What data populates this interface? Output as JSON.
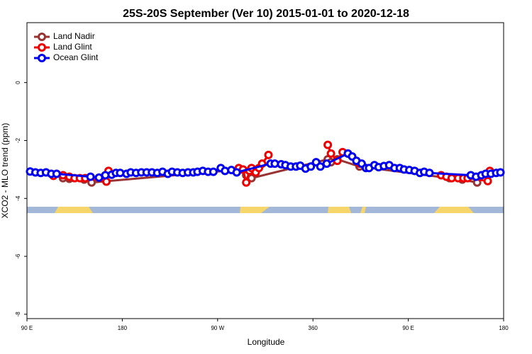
{
  "chart_data": {
    "type": "line",
    "title": "25S-20S September (Ver 10)   2015-01-01 to 2020-12-18",
    "xlabel": "Longitude",
    "ylabel": "XCO2 - MLO trend (ppm)",
    "xlim": [
      90,
      540
    ],
    "ylim": [
      -8.15,
      2.07
    ],
    "xticks": [
      {
        "value": 90,
        "label": "90 E"
      },
      180,
      {
        "value": 270,
        "label": "90 W"
      },
      360,
      {
        "value": 450,
        "label": "90 E"
      },
      {
        "value": 540,
        "label": "180"
      }
    ],
    "yticks": [
      -8,
      -6,
      -4,
      -2,
      0
    ],
    "legend": "top-left",
    "series": [
      {
        "name": "Land Nadir",
        "color": "#993333",
        "x": [
          124,
          130,
          144,
          151,
          292,
          297,
          302,
          374,
          377,
          383,
          404,
          489,
          501,
          515
        ],
        "values": [
          -3.3,
          -3.32,
          -3.35,
          -3.45,
          -3.0,
          -3.2,
          -3.3,
          -2.65,
          -2.75,
          -2.65,
          -2.9,
          -3.3,
          -3.35,
          -3.45
        ]
      },
      {
        "name": "Land Glint",
        "color": "#ee0000",
        "x": [
          115,
          124,
          130,
          135,
          140,
          145,
          165,
          167,
          null,
          290,
          294,
          297,
          300,
          302,
          306,
          309,
          312,
          318,
          null,
          374,
          377,
          383,
          388,
          393,
          404,
          null,
          481,
          486,
          491,
          497,
          502,
          506,
          525,
          527
        ],
        "values": [
          -3.22,
          -3.2,
          -3.25,
          -3.3,
          -3.3,
          -3.3,
          -3.42,
          -3.05,
          null,
          -2.95,
          -3.0,
          -3.45,
          -3.05,
          -2.95,
          -3.1,
          -2.95,
          -2.8,
          -2.5,
          null,
          -2.15,
          -2.45,
          -2.7,
          -2.4,
          -2.45,
          -2.8,
          null,
          -3.2,
          -3.25,
          -3.3,
          -3.3,
          -3.3,
          -3.3,
          -3.4,
          -3.05
        ]
      },
      {
        "name": "Ocean Glint",
        "color": "#0000ee",
        "x": [
          93,
          98,
          103,
          108,
          113,
          118,
          150,
          158,
          164,
          170,
          174,
          178,
          184,
          188,
          193,
          198,
          203,
          208,
          213,
          218,
          223,
          227,
          232,
          237,
          242,
          247,
          251,
          256,
          261,
          266,
          273,
          277,
          283,
          288,
          320,
          324,
          330,
          334,
          339,
          344,
          348,
          353,
          358,
          363,
          367,
          373,
          393,
          397,
          401,
          406,
          410,
          413,
          418,
          422,
          427,
          432,
          437,
          442,
          446,
          451,
          456,
          461,
          465,
          470,
          509,
          514,
          519,
          523,
          528,
          533,
          537
        ],
        "values": [
          -3.07,
          -3.1,
          -3.12,
          -3.1,
          -3.15,
          -3.15,
          -3.25,
          -3.28,
          -3.2,
          -3.18,
          -3.12,
          -3.12,
          -3.15,
          -3.1,
          -3.12,
          -3.1,
          -3.1,
          -3.1,
          -3.12,
          -3.08,
          -3.15,
          -3.08,
          -3.1,
          -3.12,
          -3.1,
          -3.1,
          -3.08,
          -3.05,
          -3.08,
          -3.08,
          -2.95,
          -3.05,
          -3.02,
          -3.1,
          -2.8,
          -2.8,
          -2.82,
          -2.85,
          -2.9,
          -2.9,
          -2.87,
          -2.97,
          -2.9,
          -2.75,
          -2.9,
          -2.8,
          -2.45,
          -2.55,
          -2.7,
          -2.8,
          -2.95,
          -2.95,
          -2.85,
          -2.92,
          -2.88,
          -2.85,
          -2.95,
          -2.95,
          -3.0,
          -3.02,
          -3.05,
          -3.12,
          -3.08,
          -3.12,
          -3.2,
          -3.25,
          -3.2,
          -3.15,
          -3.15,
          -3.12,
          -3.1
        ]
      }
    ]
  }
}
